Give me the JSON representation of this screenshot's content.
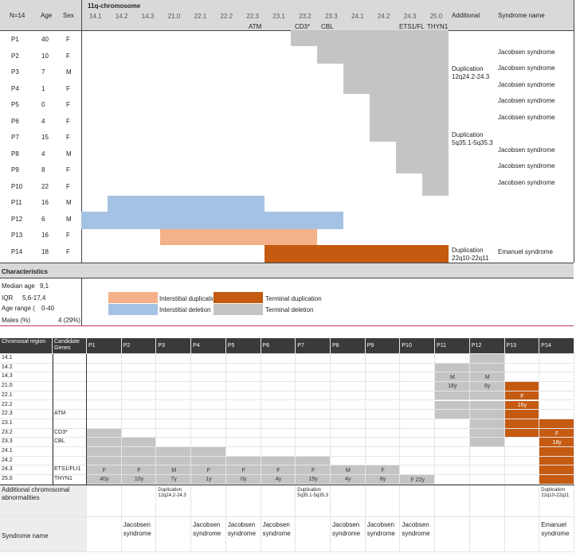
{
  "top": {
    "header": {
      "n": "N=14",
      "age": "Age",
      "sex": "Sex",
      "chrom_title": "11q-chromosome",
      "additional": "Additional",
      "syndrome": "Syndrome name",
      "bands": [
        "14.1",
        "14.2",
        "14.3",
        "21.0",
        "22.1",
        "22.2",
        "22.3",
        "23.1",
        "23.2",
        "23.3",
        "24.1",
        "24.2",
        "24.3",
        "25.0"
      ],
      "genes": [
        "ATM",
        "CD3*",
        "CBL",
        "ETS1/FL",
        "THYN1"
      ]
    },
    "patients": [
      {
        "id": "P1",
        "age": "40",
        "sex": "F",
        "additional": "",
        "syndrome": ""
      },
      {
        "id": "P2",
        "age": "10",
        "sex": "F",
        "additional": "",
        "syndrome": "Jacobsen syndrome"
      },
      {
        "id": "P3",
        "age": "7",
        "sex": "M",
        "additional": "",
        "syndrome": "Jacobsen syndrome"
      },
      {
        "id": "P4",
        "age": "1",
        "sex": "F",
        "additional": "",
        "syndrome": "Jacobsen syndrome"
      },
      {
        "id": "P5",
        "age": "0",
        "sex": "F",
        "additional": "",
        "syndrome": "Jacobsen syndrome"
      },
      {
        "id": "P6",
        "age": "4",
        "sex": "F",
        "additional": "",
        "syndrome": "Jacobsen syndrome"
      },
      {
        "id": "P7",
        "age": "15",
        "sex": "F",
        "additional": "",
        "syndrome": ""
      },
      {
        "id": "P8",
        "age": "4",
        "sex": "M",
        "additional": "",
        "syndrome": "Jacobsen syndrome"
      },
      {
        "id": "P9",
        "age": "8",
        "sex": "F",
        "additional": "",
        "syndrome": "Jacobsen syndrome"
      },
      {
        "id": "P10",
        "age": "22",
        "sex": "F",
        "additional": "",
        "syndrome": "Jacobsen syndrome"
      },
      {
        "id": "P11",
        "age": "16",
        "sex": "M",
        "additional": "",
        "syndrome": ""
      },
      {
        "id": "P12",
        "age": "6",
        "sex": "M",
        "additional": "",
        "syndrome": ""
      },
      {
        "id": "P13",
        "age": "16",
        "sex": "F",
        "additional": "",
        "syndrome": ""
      },
      {
        "id": "P14",
        "age": "18",
        "sex": "F",
        "additional": "",
        "syndrome": "Emanuel syndrome"
      }
    ],
    "additional_notes": [
      {
        "l1": "Duplication",
        "l2": "12q24.2-24.3"
      },
      {
        "l1": "Duplication",
        "l2": "5q35.1-5q35.3"
      },
      {
        "l1": "Duplication",
        "l2": "22q10-22q11"
      }
    ],
    "characteristics": {
      "title": "Characteristics",
      "median_label": "Median age",
      "median_value": "9,1",
      "iqr_label": "IQR",
      "iqr_value": "5,6-17,4",
      "range_label": "Age range (",
      "range_value": "0-40",
      "males_label": "Males (%)",
      "males_value": "4 (29%)"
    },
    "legend": {
      "interstitial_dup": "Interstitial duplication",
      "interstitial_del": "Interstitial deletion",
      "terminal_dup": "Terminal duplication",
      "terminal_del": "Terminal deletion"
    },
    "colors": {
      "terminal_del": "#c4c4c4",
      "interstitial_del": "#a4c3e4",
      "interstitial_dup": "#f4b18a",
      "terminal_dup": "#c55a11"
    }
  },
  "bottom": {
    "header": {
      "region": "Chromosal region",
      "genes": "Candidate Genes",
      "patients": [
        "P1",
        "P2",
        "P3",
        "P4",
        "P5",
        "P6",
        "P7",
        "P8",
        "P9",
        "P10",
        "P11",
        "P12",
        "P13",
        "P14"
      ]
    },
    "regions": [
      "14.1",
      "14.2",
      "14.3",
      "21.0",
      "22.1",
      "22.2",
      "22.3",
      "23.1",
      "23.2",
      "23.3",
      "24.1",
      "24.2",
      "24.3",
      "25.0"
    ],
    "genes": {
      "22.3": "ATM",
      "23.2": "CD3*",
      "23.3": "CBL",
      "24.3": "ETS1/FLI1",
      "25.0": "THYN1"
    },
    "labels": {
      "P1": "F\n40y",
      "P2": "F\n10y",
      "P3": "M\n7y",
      "P4": "F\n1y",
      "P5": "F\n0y",
      "P6": "F\n4y",
      "P7": "F\n15y",
      "P8": "M\n4y",
      "P9": "F\n8y",
      "P10": "F 22y",
      "P11": "M\n16y",
      "P12": "M\n6y",
      "P13": "F\n16y",
      "P14": "F\n18y"
    },
    "additional_label": "Additional chromosomal abnormalities",
    "additional": {
      "P3": "Duplication 12q24.2-24.3",
      "P7": "Duplication 5q35.1-5q35.3",
      "P14": "Duplication 22q10-22q11"
    },
    "syndrome_label": "Syndrome name",
    "syndromes": {
      "P2": "Jacobsen syndrome",
      "P4": "Jacobsen syndrome",
      "P5": "Jacobsen syndrome",
      "P6": "Jacobsen syndrome",
      "P8": "Jacobsen syndrome",
      "P9": "Jacobsen syndrome",
      "P10": "Jacobsen syndrome",
      "P14": "Emanuel syndrome"
    }
  }
}
